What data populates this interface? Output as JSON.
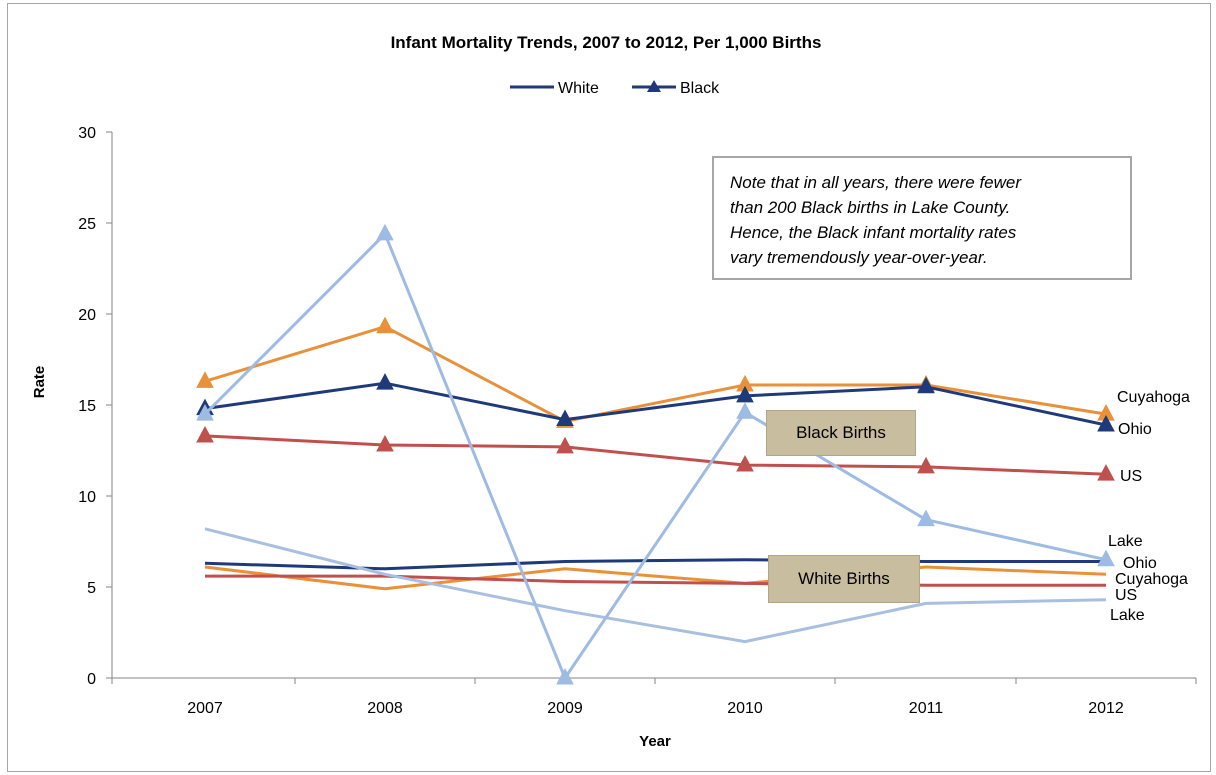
{
  "chart_data": {
    "type": "line",
    "title": "Infant Mortality Trends, 2007 to 2012, Per 1,000 Births",
    "xlabel": "Year",
    "ylabel": "Rate",
    "ylim": [
      0,
      30
    ],
    "yticks": [
      "0",
      "5",
      "10",
      "15",
      "20",
      "25",
      "30"
    ],
    "categories": [
      "2007",
      "2008",
      "2009",
      "2010",
      "2011",
      "2012"
    ],
    "legend": {
      "placement": "top",
      "entries": [
        {
          "label": "White",
          "marker": "none",
          "color": "#1f3a7a"
        },
        {
          "label": "Black",
          "marker": "triangle",
          "color": "#1f3a7a"
        }
      ]
    },
    "series": [
      {
        "group": "Black",
        "label": "Cuyahoga",
        "color": "#e8913a",
        "marker": "triangle",
        "values": [
          16.3,
          19.3,
          14.1,
          16.1,
          16.1,
          14.5
        ]
      },
      {
        "group": "Black",
        "label": "Ohio",
        "color": "#1f3a7a",
        "marker": "triangle",
        "values": [
          14.8,
          16.2,
          14.2,
          15.5,
          16.0,
          13.9
        ]
      },
      {
        "group": "Black",
        "label": "US",
        "color": "#c0504d",
        "marker": "triangle",
        "values": [
          13.3,
          12.8,
          12.7,
          11.7,
          11.6,
          11.2
        ]
      },
      {
        "group": "Black",
        "label": "Lake",
        "color": "#9dbbe3",
        "marker": "triangle",
        "values": [
          14.5,
          24.4,
          0.0,
          14.6,
          8.7,
          6.5
        ]
      },
      {
        "group": "White",
        "label": "Ohio",
        "color": "#1f3a7a",
        "marker": "none",
        "values": [
          6.3,
          6.0,
          6.4,
          6.5,
          6.4,
          6.4
        ]
      },
      {
        "group": "White",
        "label": "Cuyahoga",
        "color": "#e8913a",
        "marker": "none",
        "values": [
          6.1,
          4.9,
          6.0,
          5.2,
          6.1,
          5.7
        ]
      },
      {
        "group": "White",
        "label": "US",
        "color": "#c0504d",
        "marker": "none",
        "values": [
          5.6,
          5.6,
          5.3,
          5.2,
          5.1,
          5.1
        ]
      },
      {
        "group": "White",
        "label": "Lake",
        "color": "#a9bfe0",
        "marker": "none",
        "values": [
          8.2,
          5.7,
          3.7,
          2.0,
          4.1,
          4.3
        ]
      }
    ],
    "annotations": {
      "note_lines": [
        "Note that in all years, there were fewer",
        "than 200 Black births in Lake County.",
        "Hence, the Black infant mortality rates",
        "vary tremendously year-over-year."
      ],
      "black_births": "Black Births",
      "white_births": "White Births"
    },
    "grid": false
  }
}
